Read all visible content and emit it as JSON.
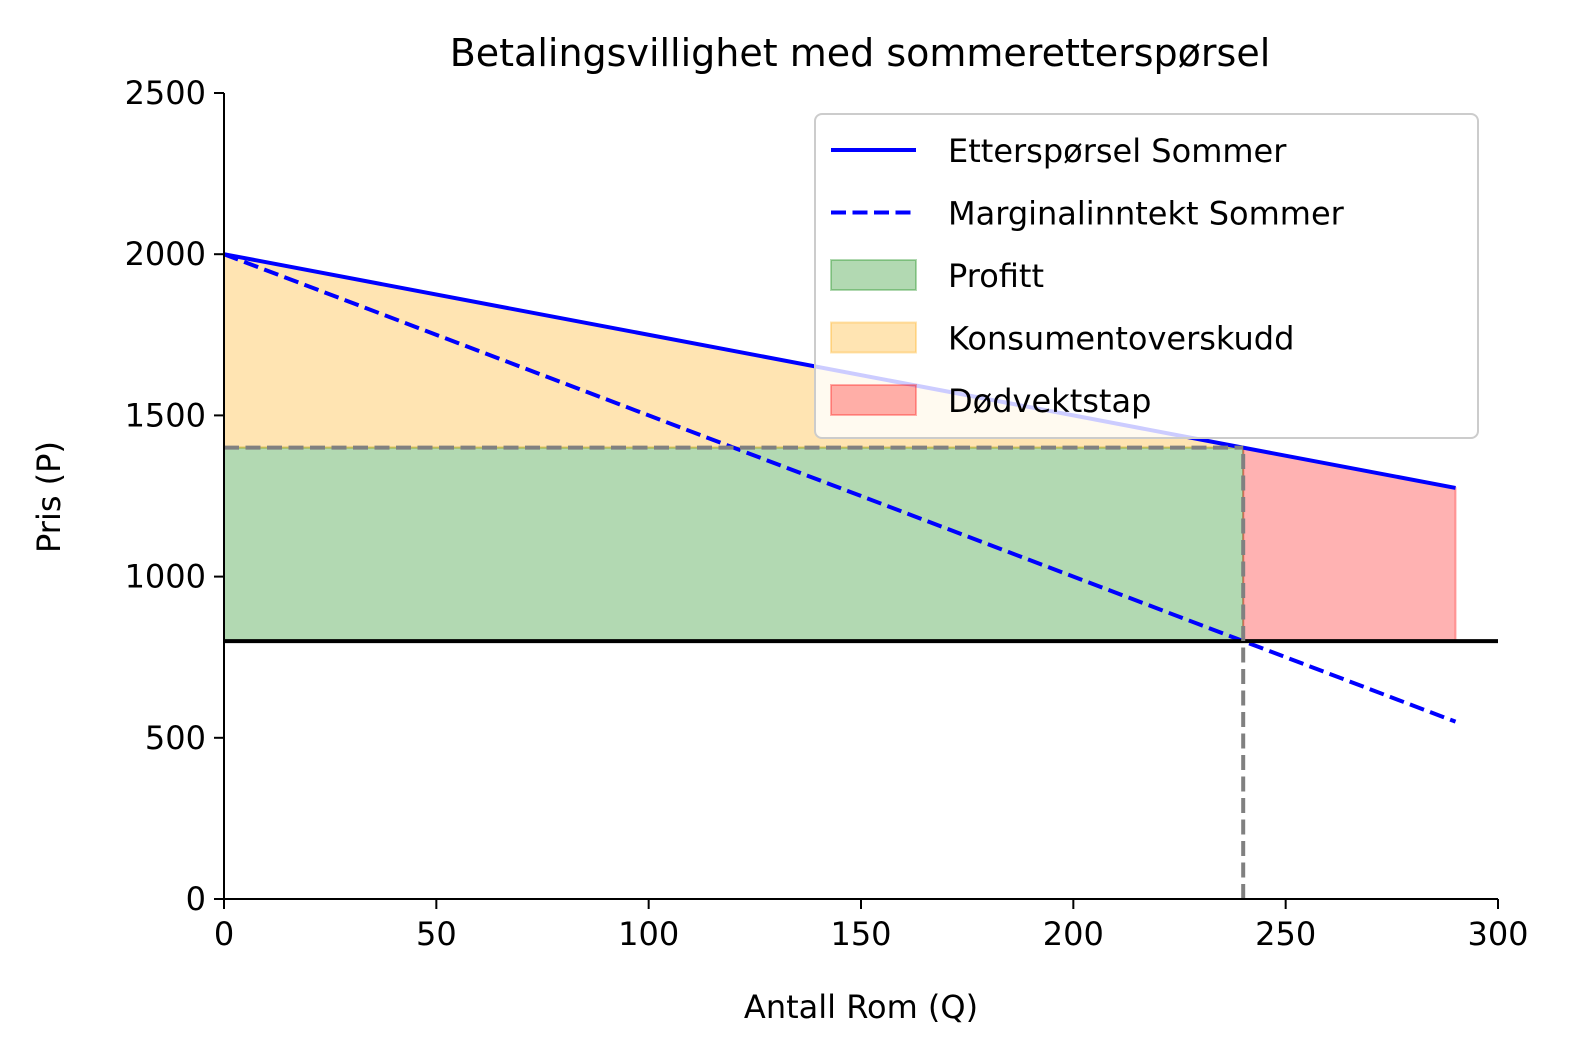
{
  "chart_data": {
    "type": "line",
    "title": "Betalingsvillighet med sommeretterspørsel",
    "xlabel": "Antall Rom (Q)",
    "ylabel": "Pris (P)",
    "xlim": [
      0,
      300
    ],
    "ylim": [
      0,
      2500
    ],
    "xticks": [
      0,
      50,
      100,
      150,
      200,
      250,
      300
    ],
    "yticks": [
      0,
      500,
      1000,
      1500,
      2000,
      2500
    ],
    "grid": false,
    "legend_position": "top-right",
    "series": [
      {
        "name": "Etterspørsel Sommer",
        "style": "solid",
        "color": "#0000ff",
        "x": [
          0,
          290
        ],
        "y": [
          2000,
          1275
        ]
      },
      {
        "name": "Marginalinntekt Sommer",
        "style": "dashed",
        "color": "#0000ff",
        "x": [
          0,
          290
        ],
        "y": [
          2000,
          550
        ]
      }
    ],
    "areas": [
      {
        "name": "Profitt",
        "color": "#008000",
        "opacity": 0.3,
        "x": [
          0,
          240
        ],
        "y_lower": [
          800,
          800
        ],
        "y_upper": [
          1400,
          1400
        ]
      },
      {
        "name": "Konsumentoverskudd",
        "color": "#ffa500",
        "opacity": 0.3,
        "x": [
          0,
          240
        ],
        "y_lower": [
          1400,
          1400
        ],
        "y_upper": [
          2000,
          1400
        ]
      },
      {
        "name": "Dødvektstap",
        "color": "#ff0000",
        "opacity": 0.3,
        "x": [
          240,
          290
        ],
        "y_lower": [
          800,
          800
        ],
        "y_upper": [
          1400,
          1275
        ]
      }
    ],
    "reference_lines": [
      {
        "name": "marginal-cost-line",
        "orientation": "horizontal",
        "value": 800,
        "x_range": [
          0,
          300
        ],
        "style": "solid",
        "color": "#000000"
      },
      {
        "name": "optimal-price-line",
        "orientation": "horizontal",
        "value": 1400,
        "x_range": [
          0,
          240
        ],
        "style": "dashed",
        "color": "#808080"
      },
      {
        "name": "optimal-quantity-line",
        "orientation": "vertical",
        "value": 240,
        "y_range": [
          0,
          1400
        ],
        "style": "dashed",
        "color": "#808080"
      }
    ]
  }
}
